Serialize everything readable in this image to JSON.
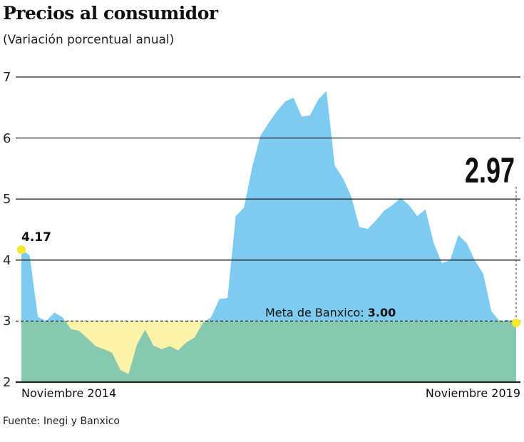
{
  "title": "Precios al consumidor",
  "subtitle": "(Variación porcentual anual)",
  "source": "Fuente: Inegi y Banxico",
  "colors": {
    "above_target": "#7ecbf2",
    "below_target_gap": "#fcf3a8",
    "base": "#86c9b0",
    "marker": "#f2ea2a"
  },
  "chart_data": {
    "type": "area",
    "title": "Precios al consumidor",
    "subtitle": "(Variación porcentual anual)",
    "ylim": [
      2,
      7
    ],
    "yticks": [
      "7",
      "6",
      "5",
      "4",
      "3",
      "2"
    ],
    "xtick_labels": [
      "Noviembre 2014",
      "Noviembre 2019"
    ],
    "grid": true,
    "x_start": "Noviembre 2014",
    "x_end": "Noviembre 2019",
    "frequency": "monthly",
    "values": [
      4.17,
      4.08,
      3.07,
      3.0,
      3.14,
      3.06,
      2.87,
      2.84,
      2.72,
      2.59,
      2.54,
      2.48,
      2.2,
      2.13,
      2.61,
      2.86,
      2.6,
      2.54,
      2.59,
      2.52,
      2.65,
      2.73,
      2.97,
      3.06,
      3.36,
      3.38,
      4.72,
      4.86,
      5.53,
      6.04,
      6.25,
      6.44,
      6.6,
      6.66,
      6.35,
      6.37,
      6.63,
      6.77,
      5.55,
      5.34,
      5.04,
      4.54,
      4.51,
      4.65,
      4.81,
      4.9,
      5.02,
      4.9,
      4.72,
      4.83,
      4.28,
      3.95,
      4.0,
      4.41,
      4.28,
      3.99,
      3.78,
      3.16,
      3.0,
      3.02,
      2.97
    ],
    "target": {
      "value": 3.0,
      "label": "Meta de Banxico: ",
      "value_label": "3.00"
    },
    "annotations": {
      "start": "4.17",
      "end": "2.97"
    }
  }
}
